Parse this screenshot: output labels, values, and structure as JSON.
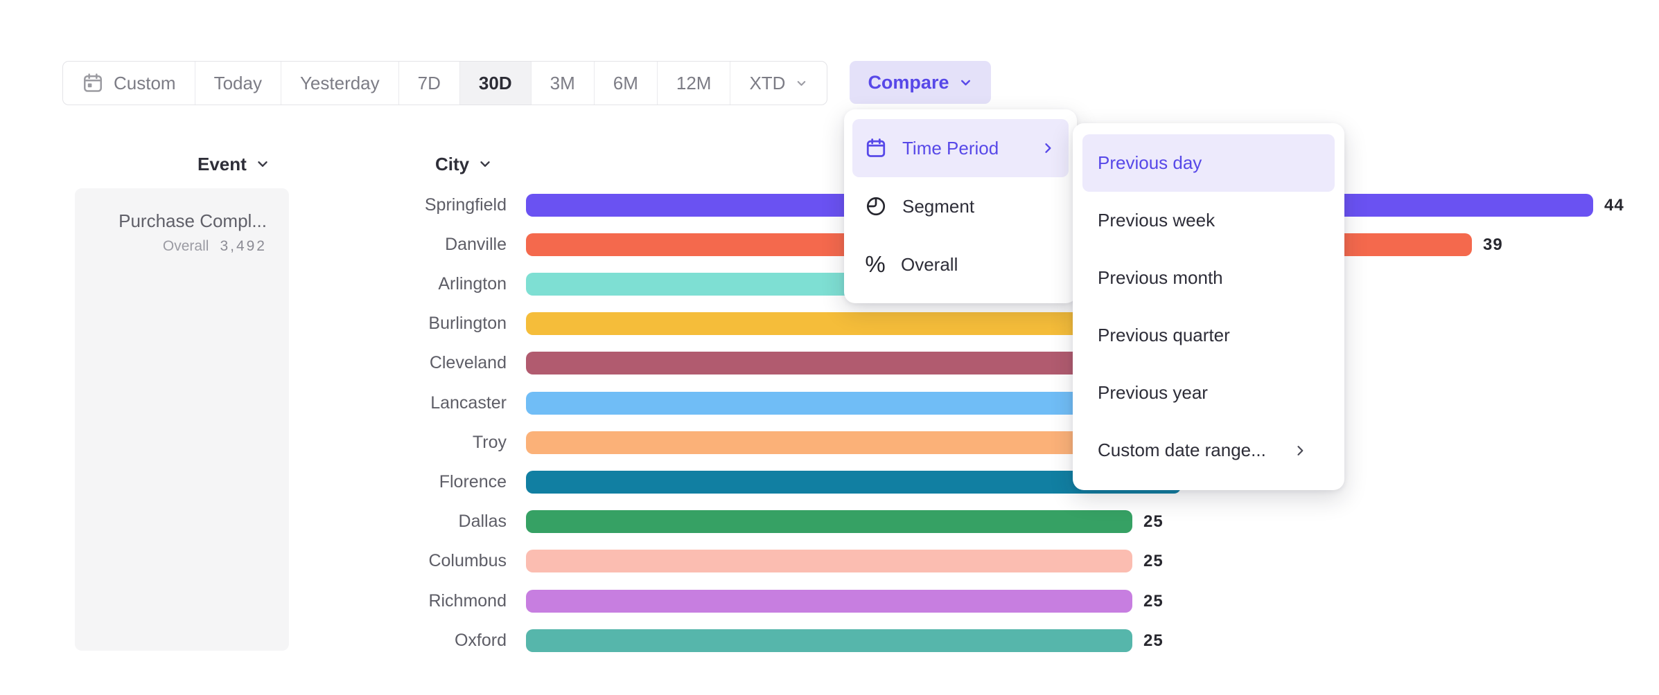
{
  "toolbar": {
    "date_ranges": [
      {
        "label": "Custom",
        "icon": "calendar",
        "selected": false,
        "chevron": false
      },
      {
        "label": "Today",
        "selected": false
      },
      {
        "label": "Yesterday",
        "selected": false
      },
      {
        "label": "7D",
        "selected": false
      },
      {
        "label": "30D",
        "selected": true
      },
      {
        "label": "3M",
        "selected": false
      },
      {
        "label": "6M",
        "selected": false
      },
      {
        "label": "12M",
        "selected": false
      },
      {
        "label": "XTD",
        "selected": false,
        "chevron": true
      }
    ],
    "compare": {
      "label": "Compare"
    }
  },
  "compare_menu": {
    "items": [
      {
        "label": "Time Period",
        "icon": "calendar-icon",
        "selected": true,
        "has_submenu": true
      },
      {
        "label": "Segment",
        "icon": "segment-icon",
        "selected": false
      },
      {
        "label": "Overall",
        "icon": "percent-icon",
        "selected": false
      }
    ]
  },
  "time_period_submenu": {
    "items": [
      {
        "label": "Previous day",
        "selected": true
      },
      {
        "label": "Previous week",
        "selected": false
      },
      {
        "label": "Previous month",
        "selected": false
      },
      {
        "label": "Previous quarter",
        "selected": false
      },
      {
        "label": "Previous year",
        "selected": false
      },
      {
        "label": "Custom date range...",
        "selected": false,
        "has_submenu": true
      }
    ]
  },
  "events_panel": {
    "header": "Event",
    "item": {
      "name": "Purchase Compl...",
      "metric_label": "Overall",
      "metric_value": "3,492"
    }
  },
  "chart_data": {
    "type": "bar",
    "orientation": "horizontal",
    "column_header": "City",
    "categories": [
      "Springfield",
      "Danville",
      "Arlington",
      "Burlington",
      "Cleveland",
      "Lancaster",
      "Troy",
      "Florence",
      "Dallas",
      "Columbus",
      "Richmond",
      "Oxford"
    ],
    "series": [
      {
        "name": "Overall",
        "values": [
          44,
          39,
          null,
          null,
          null,
          null,
          null,
          null,
          25,
          25,
          25,
          25
        ]
      }
    ],
    "values_hidden_by_menu": [
      false,
      false,
      true,
      true,
      true,
      true,
      true,
      true,
      false,
      false,
      false,
      false
    ],
    "hidden_bar_length_estimates": [
      null,
      null,
      32,
      31,
      30,
      29,
      28,
      27,
      null,
      null,
      null,
      null
    ],
    "bar_colors": [
      "#6a52f2",
      "#f4694d",
      "#7edfd3",
      "#f5bd3a",
      "#b15b6f",
      "#70bdf6",
      "#fbb178",
      "#117fa2",
      "#36a164",
      "#fbbdb1",
      "#c77ee0",
      "#56b6ab"
    ],
    "xlim": [
      0,
      47
    ],
    "grid": false,
    "legend": false
  },
  "colors": {
    "accent_purple": "#5748e8",
    "accent_purple_bg": "#e4e1f9",
    "menu_highlight_bg": "#edeafc",
    "panel_bg": "#f5f5f6",
    "selected_range_bg": "#f2f2f4",
    "text_dark": "#2d2d38",
    "label_gray": "#5d5d66",
    "toolbar_text": "#7c7c85"
  }
}
